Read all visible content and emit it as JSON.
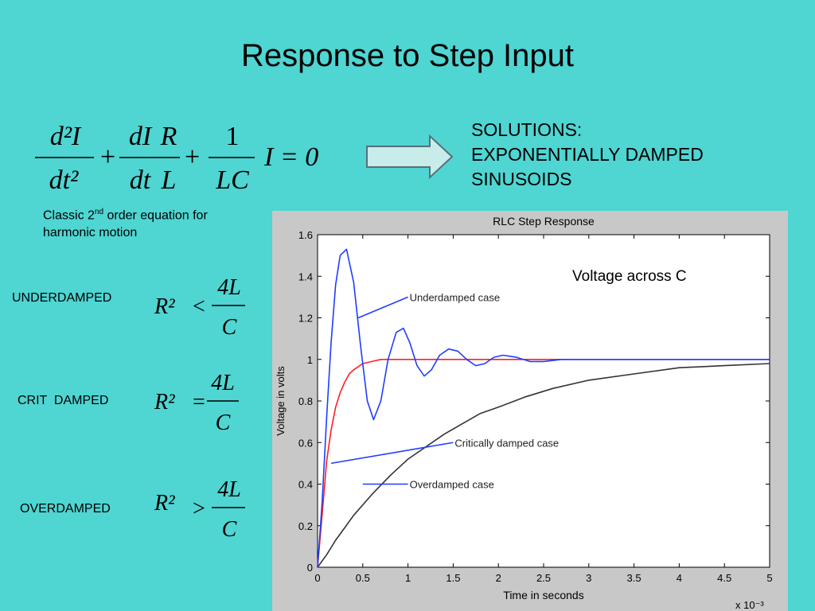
{
  "slide": {
    "title": "Response to Step Input",
    "solutions_lines": [
      "SOLUTIONS:",
      "EXPONENTIALLY DAMPED",
      "SINUSOIDS"
    ],
    "note_prefix": "Classic 2",
    "note_sup": "nd",
    "note_rest": " order equation for",
    "note_line2": "harmonic motion",
    "underdamped_label": "UNDERDAMPED",
    "crit_label": "CRIT  DAMPED",
    "overdamped_label": "OVERDAMPED",
    "equation": {
      "t1_num": "d²I",
      "t1_den": "dt²",
      "t2_num": "dI",
      "t2_den": "dt",
      "t3_num": "R",
      "t3_den": "L",
      "t4_num": "1",
      "t4_den": "LC",
      "tail": "I = 0",
      "plus": "+"
    },
    "cond": {
      "lhs": "R²",
      "under_op": "<",
      "crit_op": "=",
      "over_op": ">",
      "num": "4L",
      "den": "C"
    }
  },
  "chart_data": {
    "type": "line",
    "title": "RLC Step Response",
    "xlabel": "Time in seconds",
    "ylabel": "Voltage in volts",
    "x_multiplier_label": "x 10⁻³",
    "xlim": [
      0,
      5
    ],
    "ylim": [
      0,
      1.6
    ],
    "xticks": [
      "0",
      "0.5",
      "1",
      "1.5",
      "2",
      "2.5",
      "3",
      "3.5",
      "4",
      "4.5",
      "5"
    ],
    "yticks": [
      "0",
      "0.2",
      "0.4",
      "0.6",
      "0.8",
      "1",
      "1.2",
      "1.4",
      "1.6"
    ],
    "annotation": "Voltage across C",
    "series": [
      {
        "name": "Underdamped case",
        "color": "#1f3dff",
        "x": [
          0,
          0.05,
          0.1,
          0.15,
          0.2,
          0.25,
          0.32,
          0.4,
          0.48,
          0.55,
          0.62,
          0.7,
          0.78,
          0.87,
          0.95,
          1.02,
          1.1,
          1.18,
          1.26,
          1.35,
          1.45,
          1.55,
          1.65,
          1.75,
          1.85,
          1.95,
          2.05,
          2.2,
          2.35,
          2.5,
          2.7,
          2.9,
          3.2,
          3.5,
          4.0,
          4.5,
          5.0
        ],
        "y": [
          0,
          0.31,
          0.72,
          1.08,
          1.36,
          1.5,
          1.53,
          1.37,
          1.05,
          0.8,
          0.71,
          0.8,
          1.0,
          1.13,
          1.15,
          1.08,
          0.97,
          0.92,
          0.95,
          1.02,
          1.05,
          1.04,
          1.0,
          0.97,
          0.98,
          1.01,
          1.02,
          1.01,
          0.99,
          0.99,
          1.0,
          1.0,
          1.0,
          1.0,
          1.0,
          1.0,
          1.0
        ]
      },
      {
        "name": "Critically damped case",
        "color": "#ff2020",
        "x": [
          0,
          0.05,
          0.1,
          0.15,
          0.2,
          0.25,
          0.3,
          0.35,
          0.4,
          0.5,
          0.6,
          0.7,
          0.8,
          1.0,
          1.5,
          2.0,
          3.0,
          4.0,
          5.0
        ],
        "y": [
          0,
          0.25,
          0.51,
          0.66,
          0.77,
          0.84,
          0.89,
          0.93,
          0.95,
          0.98,
          0.99,
          1.0,
          1.0,
          1.0,
          1.0,
          1.0,
          1.0,
          1.0,
          1.0
        ]
      },
      {
        "name": "Overdamped case",
        "color": "#333333",
        "x": [
          0,
          0.1,
          0.2,
          0.3,
          0.4,
          0.5,
          0.6,
          0.8,
          1.0,
          1.2,
          1.4,
          1.6,
          1.8,
          2.0,
          2.3,
          2.6,
          3.0,
          3.5,
          4.0,
          4.5,
          5.0
        ],
        "y": [
          0,
          0.06,
          0.13,
          0.19,
          0.25,
          0.3,
          0.35,
          0.44,
          0.52,
          0.58,
          0.64,
          0.69,
          0.74,
          0.77,
          0.82,
          0.86,
          0.9,
          0.93,
          0.96,
          0.97,
          0.98
        ]
      }
    ],
    "callouts": [
      {
        "label": "Underdamped case",
        "from": [
          0.45,
          1.2
        ],
        "to": [
          1.0,
          1.3
        ]
      },
      {
        "label": "Critically damped case",
        "from": [
          0.15,
          0.5
        ],
        "to": [
          1.5,
          0.6
        ]
      },
      {
        "label": "Overdamped case",
        "from": [
          0.5,
          0.4
        ],
        "to": [
          1.0,
          0.4
        ]
      }
    ]
  }
}
